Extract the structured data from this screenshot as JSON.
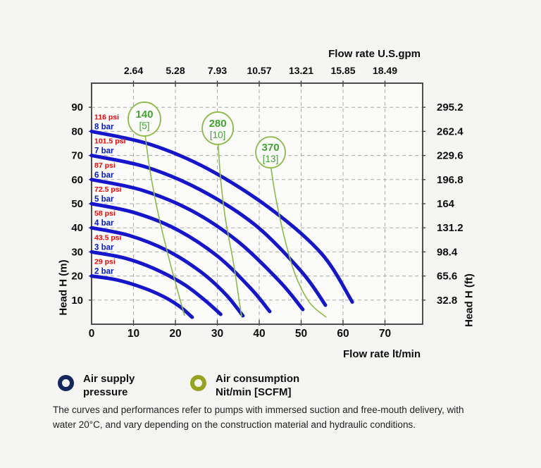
{
  "chart_data": {
    "type": "line",
    "title_top": "Flow rate U.S.gpm",
    "xlabel": "Flow rate lt/min",
    "ylabel_left": "Head H (m)",
    "ylabel_right": "Head H (ft)",
    "xlim": [
      0,
      79
    ],
    "ylim": [
      0,
      100
    ],
    "grid": true,
    "x_ticks_ltmin": [
      0,
      10,
      20,
      30,
      40,
      50,
      60,
      70
    ],
    "x_ticks_gpm": [
      "2.64",
      "5.28",
      "7.93",
      "10.57",
      "13.21",
      "15.85",
      "18.49"
    ],
    "y_ticks_m": [
      10,
      20,
      30,
      40,
      50,
      60,
      70,
      80,
      90
    ],
    "y_ticks_ft": [
      "32.8",
      "65.6",
      "98.4",
      "131.2",
      "164",
      "196.8",
      "229.6",
      "262.4",
      "295.2"
    ],
    "pressure_curves": [
      {
        "bar_label": "2 bar",
        "psi_label": "29 psi",
        "start_head_m": 20,
        "points": [
          [
            0,
            20
          ],
          [
            6,
            18.4
          ],
          [
            12,
            15.3
          ],
          [
            17,
            11.6
          ],
          [
            21,
            7.4
          ],
          [
            24,
            2.9
          ]
        ]
      },
      {
        "bar_label": "3 bar",
        "psi_label": "43.5 psi",
        "start_head_m": 30,
        "points": [
          [
            0,
            30
          ],
          [
            8,
            27.4
          ],
          [
            15,
            23
          ],
          [
            22,
            16.6
          ],
          [
            27,
            10
          ],
          [
            30.8,
            4.1
          ]
        ]
      },
      {
        "bar_label": "4 bar",
        "psi_label": "58 psi",
        "start_head_m": 40,
        "points": [
          [
            0,
            40
          ],
          [
            9,
            36.8
          ],
          [
            18,
            30.6
          ],
          [
            26,
            21.8
          ],
          [
            32,
            12.4
          ],
          [
            36.1,
            3.5
          ]
        ]
      },
      {
        "bar_label": "5 bar",
        "psi_label": "72.5 psi",
        "start_head_m": 50,
        "points": [
          [
            0,
            50
          ],
          [
            10,
            46.4
          ],
          [
            20,
            39.6
          ],
          [
            30,
            28.3
          ],
          [
            38,
            14.8
          ],
          [
            42.5,
            5.3
          ]
        ]
      },
      {
        "bar_label": "6 bar",
        "psi_label": "87 psi",
        "start_head_m": 60,
        "points": [
          [
            0,
            60
          ],
          [
            12,
            55.6
          ],
          [
            24,
            47
          ],
          [
            35,
            34.2
          ],
          [
            45,
            17.5
          ],
          [
            50.4,
            6.1
          ]
        ]
      },
      {
        "bar_label": "7 bar",
        "psi_label": "101.5 psi",
        "start_head_m": 70,
        "points": [
          [
            0,
            70
          ],
          [
            13,
            65.2
          ],
          [
            26,
            55.7
          ],
          [
            39,
            41.2
          ],
          [
            50,
            22
          ],
          [
            55.8,
            7.9
          ]
        ]
      },
      {
        "bar_label": "8 bar",
        "psi_label": "116 psi",
        "start_head_m": 80,
        "points": [
          [
            0,
            80
          ],
          [
            14,
            74.6
          ],
          [
            28,
            64.2
          ],
          [
            43,
            47.5
          ],
          [
            55,
            29
          ],
          [
            62.2,
            9.2
          ]
        ]
      }
    ],
    "consumption_curves": [
      {
        "label": "140",
        "scfm_label": "[5]",
        "bubble": {
          "flow": 12.6,
          "head": 85.1,
          "r": 23
        },
        "points": [
          [
            12.8,
            78.3
          ],
          [
            14,
            63
          ],
          [
            16,
            45
          ],
          [
            18.5,
            27
          ],
          [
            21,
            11
          ],
          [
            22.2,
            3.5
          ]
        ]
      },
      {
        "label": "280",
        "scfm_label": "[10]",
        "bubble": {
          "flow": 30.1,
          "head": 81.3,
          "r": 22
        },
        "points": [
          [
            30.2,
            74.6
          ],
          [
            30.8,
            60
          ],
          [
            32,
            43
          ],
          [
            33.8,
            26
          ],
          [
            35.2,
            10
          ],
          [
            35.8,
            3.2
          ]
        ]
      },
      {
        "label": "370",
        "scfm_label": "[13]",
        "bubble": {
          "flow": 42.7,
          "head": 71.3,
          "r": 21
        },
        "points": [
          [
            42.8,
            64.9
          ],
          [
            44,
            52
          ],
          [
            46,
            36
          ],
          [
            48.5,
            21
          ],
          [
            52,
            9
          ],
          [
            56,
            2.9
          ]
        ]
      }
    ],
    "colors": {
      "curve_blue": "#1515cd",
      "psi_red": "#f20000",
      "bar_blue": "#0018cf",
      "consumption_green": "#8cba44",
      "consumption_text": "#3fa52f",
      "grid": "#a9a9a9",
      "frame": "#4d4d4d",
      "plot_bg": "#fbfbf9",
      "axis_text": "#0d0d0d"
    }
  },
  "legend": {
    "items": [
      {
        "label_line1": "Air supply",
        "label_line2": "pressure",
        "color": "#15265e"
      },
      {
        "label_line1": "Air consumption",
        "label_line2": "Nit/min [SCFM]",
        "color": "#96a41d"
      }
    ]
  },
  "footnote": {
    "line1": "The curves and performances refer to pumps with immersed suction and free-mouth delivery, with",
    "line2": "water 20°C, and vary depending on the construction material and hydraulic conditions."
  }
}
